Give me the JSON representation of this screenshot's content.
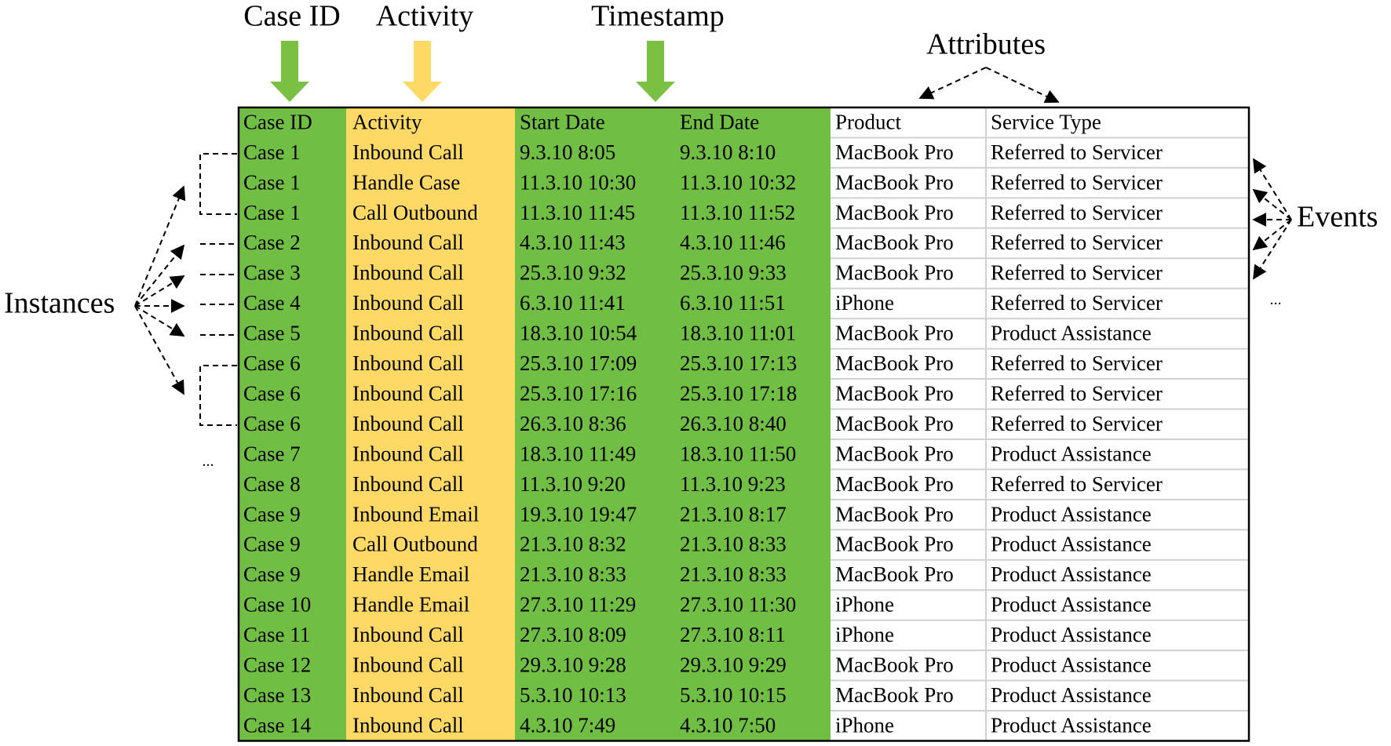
{
  "labels": {
    "case_id": "Case ID",
    "activity": "Activity",
    "timestamp": "Timestamp",
    "attributes": "Attributes",
    "instances": "Instances",
    "events": "Events",
    "ellipsis_events": "...",
    "ellipsis_instances": "..."
  },
  "table": {
    "columns": [
      "Case ID",
      "Activity",
      "Start Date",
      "End Date",
      "Product",
      "Service Type"
    ],
    "rows": [
      [
        "Case 1",
        "Inbound Call",
        "9.3.10 8:05",
        "9.3.10 8:10",
        "MacBook Pro",
        "Referred to Servicer"
      ],
      [
        "Case 1",
        "Handle Case",
        "11.3.10 10:30",
        "11.3.10 10:32",
        "MacBook Pro",
        "Referred to Servicer"
      ],
      [
        "Case 1",
        "Call Outbound",
        "11.3.10 11:45",
        "11.3.10 11:52",
        "MacBook Pro",
        "Referred to Servicer"
      ],
      [
        "Case 2",
        "Inbound Call",
        "4.3.10 11:43",
        "4.3.10 11:46",
        "MacBook Pro",
        "Referred to Servicer"
      ],
      [
        "Case 3",
        "Inbound Call",
        "25.3.10 9:32",
        "25.3.10 9:33",
        "MacBook Pro",
        "Referred to Servicer"
      ],
      [
        "Case 4",
        "Inbound Call",
        "6.3.10 11:41",
        "6.3.10 11:51",
        "iPhone",
        "Referred to Servicer"
      ],
      [
        "Case 5",
        "Inbound Call",
        "18.3.10 10:54",
        "18.3.10 11:01",
        "MacBook Pro",
        "Product Assistance"
      ],
      [
        "Case 6",
        "Inbound Call",
        "25.3.10 17:09",
        "25.3.10 17:13",
        "MacBook Pro",
        "Referred to Servicer"
      ],
      [
        "Case 6",
        "Inbound Call",
        "25.3.10 17:16",
        "25.3.10 17:18",
        "MacBook Pro",
        "Referred to Servicer"
      ],
      [
        "Case 6",
        "Inbound Call",
        "26.3.10 8:36",
        "26.3.10 8:40",
        "MacBook Pro",
        "Referred to Servicer"
      ],
      [
        "Case 7",
        "Inbound Call",
        "18.3.10 11:49",
        "18.3.10 11:50",
        "MacBook Pro",
        "Product Assistance"
      ],
      [
        "Case 8",
        "Inbound Call",
        "11.3.10 9:20",
        "11.3.10 9:23",
        "MacBook Pro",
        "Referred to Servicer"
      ],
      [
        "Case 9",
        "Inbound Email",
        "19.3.10 19:47",
        "21.3.10 8:17",
        "MacBook Pro",
        "Product Assistance"
      ],
      [
        "Case 9",
        "Call Outbound",
        "21.3.10 8:32",
        "21.3.10 8:33",
        "MacBook Pro",
        "Product Assistance"
      ],
      [
        "Case 9",
        "Handle Email",
        "21.3.10 8:33",
        "21.3.10 8:33",
        "MacBook Pro",
        "Product Assistance"
      ],
      [
        "Case 10",
        "Handle Email",
        "27.3.10 11:29",
        "27.3.10 11:30",
        "iPhone",
        "Product Assistance"
      ],
      [
        "Case 11",
        "Inbound Call",
        "27.3.10 8:09",
        "27.3.10 8:11",
        "iPhone",
        "Product Assistance"
      ],
      [
        "Case 12",
        "Inbound Call",
        "29.3.10 9:28",
        "29.3.10 9:29",
        "MacBook Pro",
        "Product Assistance"
      ],
      [
        "Case 13",
        "Inbound Call",
        "5.3.10 10:13",
        "5.3.10 10:15",
        "MacBook Pro",
        "Product Assistance"
      ],
      [
        "Case 14",
        "Inbound Call",
        "4.3.10 7:49",
        "4.3.10 7:50",
        "iPhone",
        "Product Assistance"
      ]
    ]
  }
}
